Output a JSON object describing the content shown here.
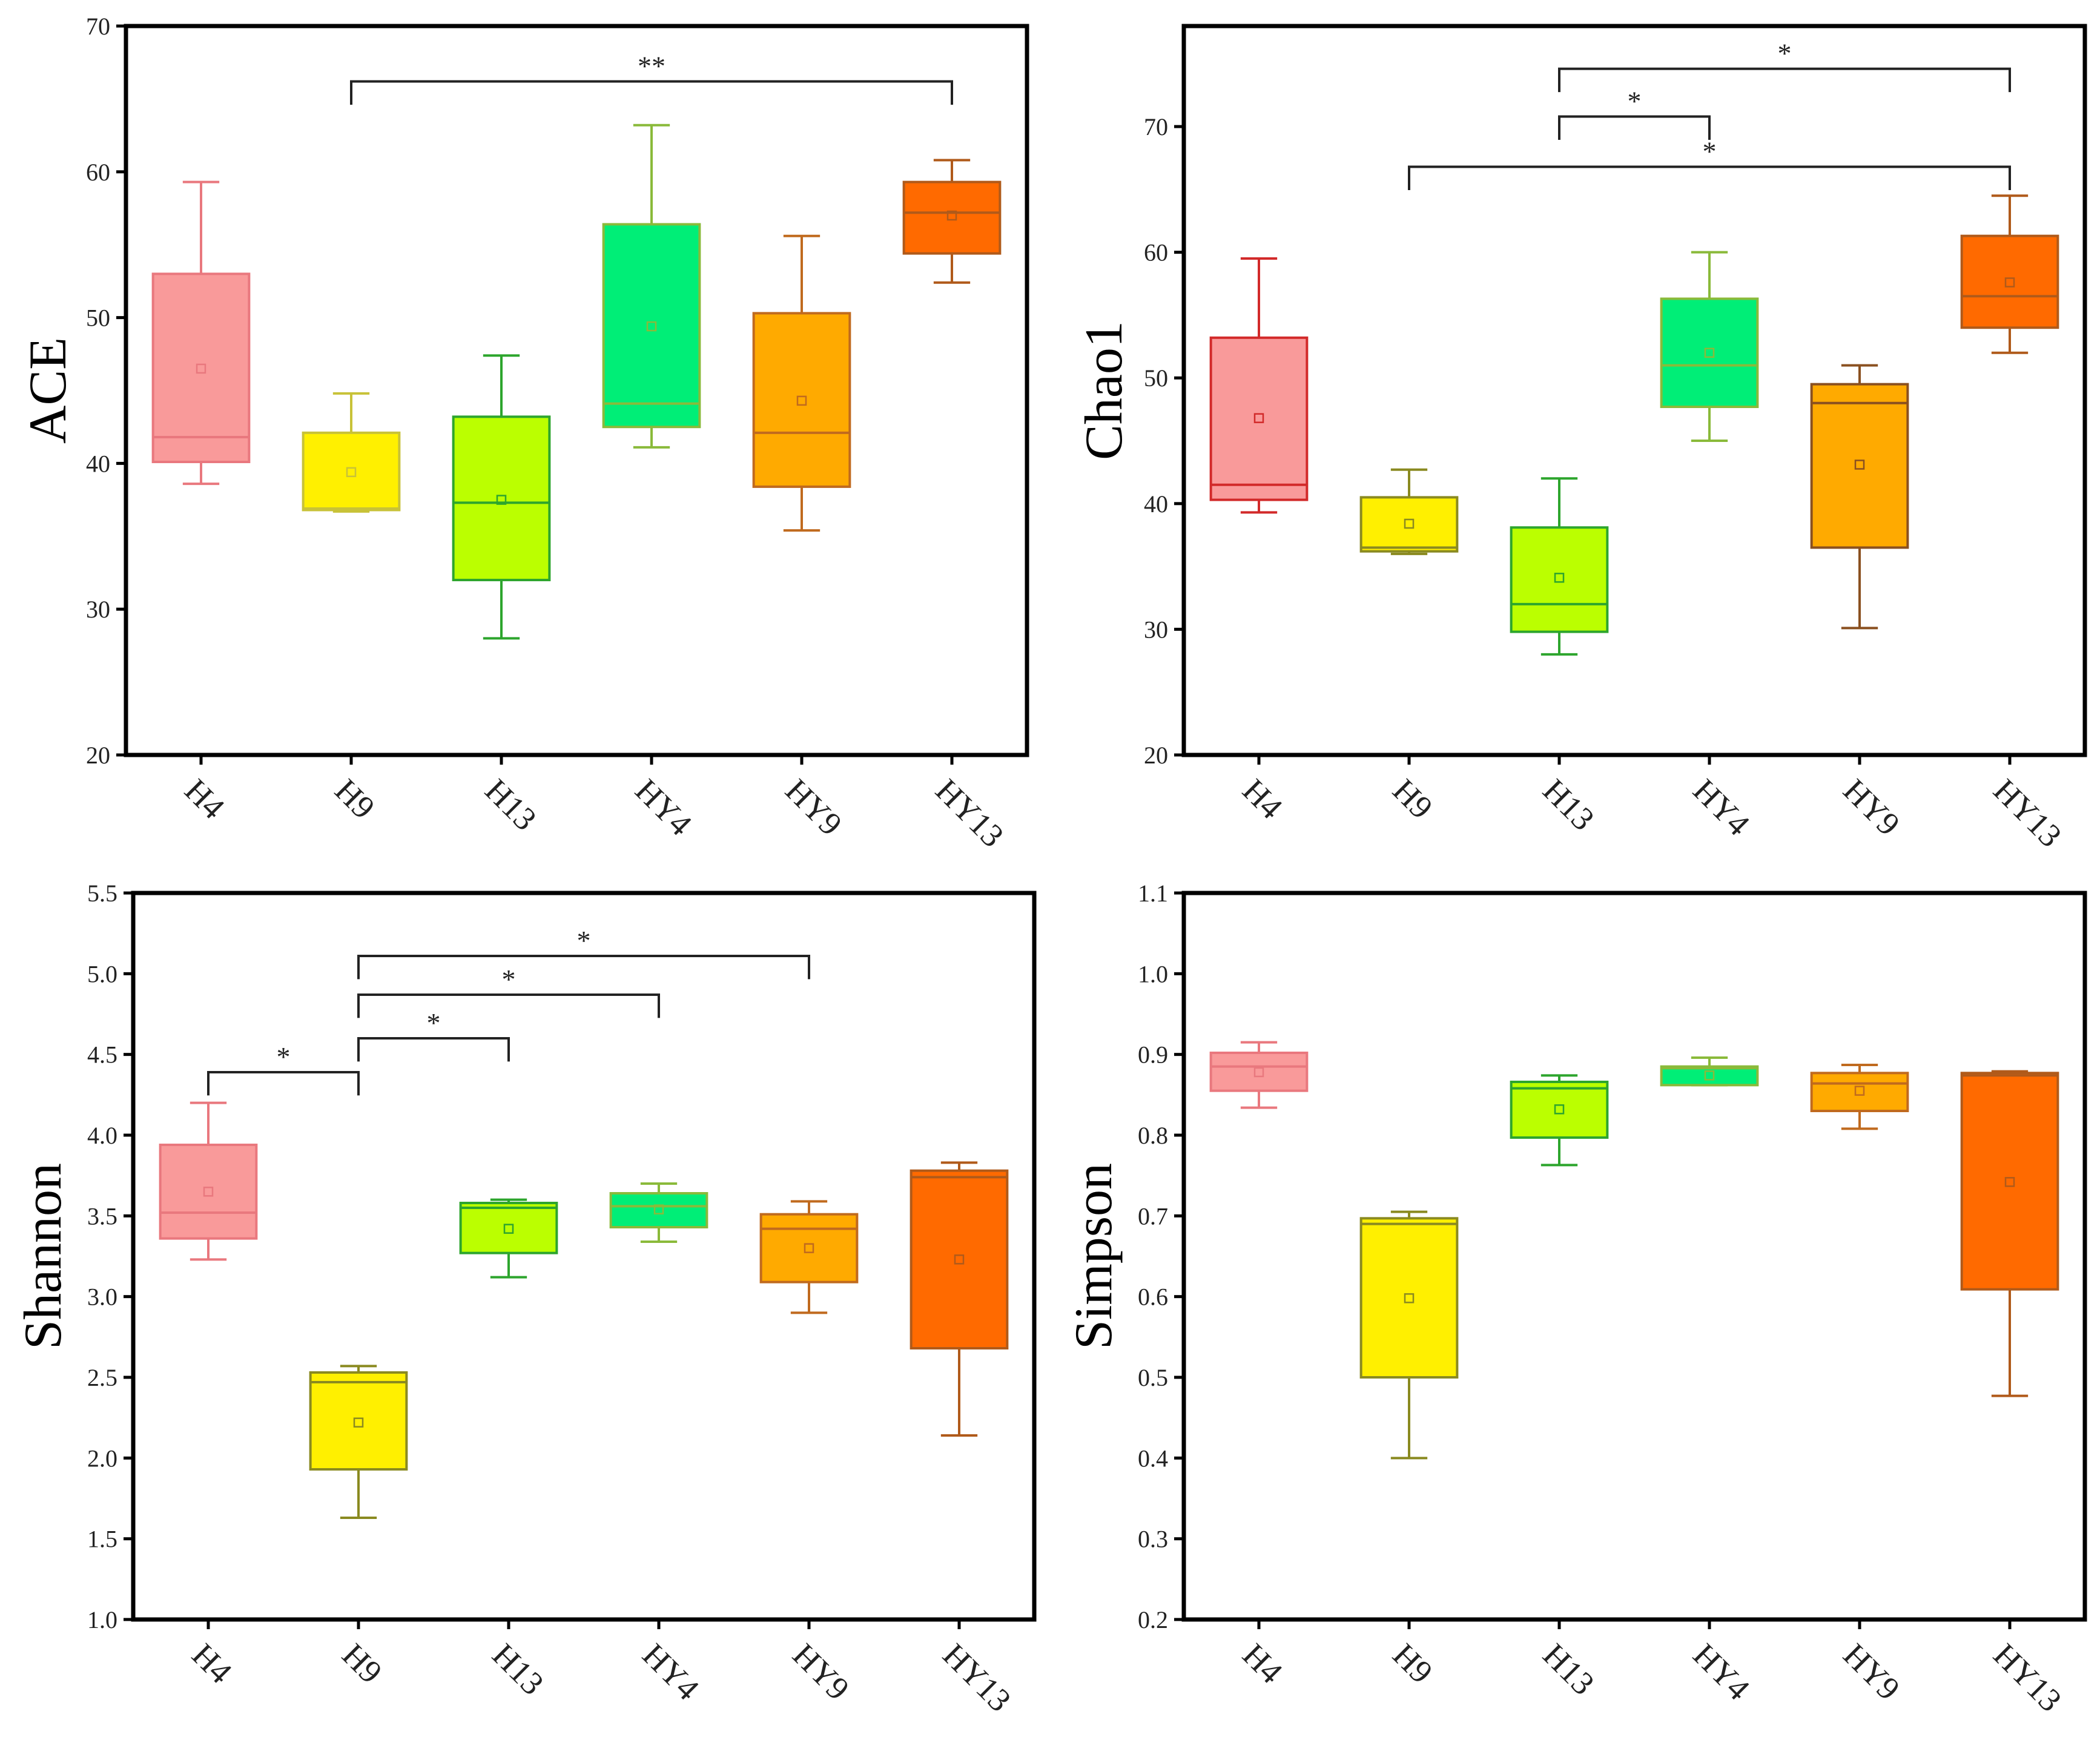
{
  "chart_data": [
    {
      "type": "box",
      "ylabel": "ACE",
      "ylim": [
        20,
        70
      ],
      "yticks": [
        20,
        30,
        40,
        50,
        60,
        70
      ],
      "categories": [
        "H4",
        "H9",
        "H13",
        "HY4",
        "HY9",
        "HY13"
      ],
      "boxes": [
        {
          "name": "H4",
          "color": "#F99A9A",
          "line": "#E9787E",
          "min": 38.6,
          "q1": 40.1,
          "median": 41.8,
          "q3": 53.0,
          "max": 59.3,
          "mean": 46.5
        },
        {
          "name": "H9",
          "color": "#FFF000",
          "line": "#C8C238",
          "min": 36.7,
          "q1": 36.8,
          "median": 36.9,
          "q3": 42.1,
          "max": 44.8,
          "mean": 39.4
        },
        {
          "name": "H13",
          "color": "#BBFF00",
          "line": "#2DA52D",
          "min": 28.0,
          "q1": 32.0,
          "median": 37.3,
          "q3": 43.2,
          "max": 47.4,
          "mean": 37.5
        },
        {
          "name": "HY4",
          "color": "#00EE77",
          "line": "#8ABA3A",
          "min": 41.1,
          "q1": 42.5,
          "median": 44.1,
          "q3": 56.4,
          "max": 63.2,
          "mean": 49.4
        },
        {
          "name": "HY9",
          "color": "#FFAA00",
          "line": "#C06A1E",
          "min": 35.4,
          "q1": 38.4,
          "median": 42.1,
          "q3": 50.3,
          "max": 55.6,
          "mean": 44.3
        },
        {
          "name": "HY13",
          "color": "#FF6A00",
          "line": "#B05A1A",
          "min": 52.4,
          "q1": 54.4,
          "median": 57.2,
          "q3": 59.3,
          "max": 60.8,
          "mean": 57.0
        }
      ],
      "significance": [
        {
          "from": "H9",
          "to": "HY13",
          "y": 66.2,
          "label": "**"
        }
      ]
    },
    {
      "type": "box",
      "ylabel": "Chao1",
      "ylim": [
        20,
        78
      ],
      "yticks": [
        20,
        30,
        40,
        50,
        60,
        70
      ],
      "categories": [
        "H4",
        "H9",
        "H13",
        "HY4",
        "HY9",
        "HY13"
      ],
      "boxes": [
        {
          "name": "H4",
          "color": "#F99A9A",
          "line": "#D22A2A",
          "min": 39.3,
          "q1": 40.3,
          "median": 41.5,
          "q3": 53.2,
          "max": 59.5,
          "mean": 46.8
        },
        {
          "name": "H9",
          "color": "#FFF000",
          "line": "#8A8A20",
          "min": 36.0,
          "q1": 36.2,
          "median": 36.5,
          "q3": 40.5,
          "max": 42.7,
          "mean": 38.4
        },
        {
          "name": "H13",
          "color": "#BBFF00",
          "line": "#2DA52D",
          "min": 28.0,
          "q1": 29.8,
          "median": 32.0,
          "q3": 38.1,
          "max": 42.0,
          "mean": 34.1
        },
        {
          "name": "HY4",
          "color": "#00EE77",
          "line": "#8ABA3A",
          "min": 45.0,
          "q1": 47.7,
          "median": 51.0,
          "q3": 56.3,
          "max": 60.0,
          "mean": 52.0
        },
        {
          "name": "HY9",
          "color": "#FFAA00",
          "line": "#8A5020",
          "min": 30.1,
          "q1": 36.5,
          "median": 48.0,
          "q3": 49.5,
          "max": 51.0,
          "mean": 43.1
        },
        {
          "name": "HY13",
          "color": "#FF6A00",
          "line": "#B05A1A",
          "min": 52.0,
          "q1": 54.0,
          "median": 56.5,
          "q3": 61.3,
          "max": 64.5,
          "mean": 57.6
        }
      ],
      "significance": [
        {
          "from": "H13",
          "to": "HY13",
          "y": 74.6,
          "label": "*"
        },
        {
          "from": "H13",
          "to": "HY4",
          "y": 70.8,
          "label": "*"
        },
        {
          "from": "H9",
          "to": "HY13",
          "y": 66.8,
          "label": "*"
        }
      ]
    },
    {
      "type": "box",
      "ylabel": "Shannon",
      "ylim": [
        1.0,
        5.5
      ],
      "yticks": [
        1.0,
        1.5,
        2.0,
        2.5,
        3.0,
        3.5,
        4.0,
        4.5,
        5.0,
        5.5
      ],
      "tick_decimals": 1,
      "categories": [
        "H4",
        "H9",
        "H13",
        "HY4",
        "HY9",
        "HY13"
      ],
      "boxes": [
        {
          "name": "H4",
          "color": "#F99A9A",
          "line": "#E9787E",
          "min": 3.23,
          "q1": 3.36,
          "median": 3.52,
          "q3": 3.94,
          "max": 4.2,
          "mean": 3.65
        },
        {
          "name": "H9",
          "color": "#FFF000",
          "line": "#8A8A20",
          "min": 1.63,
          "q1": 1.93,
          "median": 2.47,
          "q3": 2.53,
          "max": 2.57,
          "mean": 2.22
        },
        {
          "name": "H13",
          "color": "#BBFF00",
          "line": "#2DA52D",
          "min": 3.12,
          "q1": 3.27,
          "median": 3.55,
          "q3": 3.58,
          "max": 3.6,
          "mean": 3.42
        },
        {
          "name": "HY4",
          "color": "#00EE77",
          "line": "#8ABA3A",
          "min": 3.34,
          "q1": 3.43,
          "median": 3.56,
          "q3": 3.64,
          "max": 3.7,
          "mean": 3.54
        },
        {
          "name": "HY9",
          "color": "#FFAA00",
          "line": "#C06A1E",
          "min": 2.9,
          "q1": 3.09,
          "median": 3.42,
          "q3": 3.51,
          "max": 3.59,
          "mean": 3.3
        },
        {
          "name": "HY13",
          "color": "#FF6A00",
          "line": "#B05A1A",
          "min": 2.14,
          "q1": 2.68,
          "median": 3.74,
          "q3": 3.78,
          "max": 3.83,
          "mean": 3.23
        }
      ],
      "significance": [
        {
          "from": "H9",
          "to": "HY9",
          "y": 5.11,
          "label": "*"
        },
        {
          "from": "H9",
          "to": "HY4",
          "y": 4.87,
          "label": "*"
        },
        {
          "from": "H9",
          "to": "H13",
          "y": 4.6,
          "label": "*"
        },
        {
          "from": "H4",
          "to": "H9",
          "y": 4.39,
          "label": "*"
        }
      ]
    },
    {
      "type": "box",
      "ylabel": "Simpson",
      "ylim": [
        0.2,
        1.1
      ],
      "yticks": [
        0.2,
        0.3,
        0.4,
        0.5,
        0.6,
        0.7,
        0.8,
        0.9,
        1.0,
        1.1
      ],
      "tick_decimals": 1,
      "categories": [
        "H4",
        "H9",
        "H13",
        "HY4",
        "HY9",
        "HY13"
      ],
      "boxes": [
        {
          "name": "H4",
          "color": "#F99A9A",
          "line": "#E9787E",
          "min": 0.834,
          "q1": 0.855,
          "median": 0.885,
          "q3": 0.902,
          "max": 0.915,
          "mean": 0.878
        },
        {
          "name": "H9",
          "color": "#FFF000",
          "line": "#8A8A20",
          "min": 0.4,
          "q1": 0.5,
          "median": 0.69,
          "q3": 0.697,
          "max": 0.705,
          "mean": 0.598
        },
        {
          "name": "H13",
          "color": "#BBFF00",
          "line": "#2DA52D",
          "min": 0.763,
          "q1": 0.797,
          "median": 0.858,
          "q3": 0.866,
          "max": 0.874,
          "mean": 0.832
        },
        {
          "name": "HY4",
          "color": "#00EE77",
          "line": "#8ABA3A",
          "min": 0.862,
          "q1": 0.862,
          "median": 0.883,
          "q3": 0.885,
          "max": 0.896,
          "mean": 0.874
        },
        {
          "name": "HY9",
          "color": "#FFAA00",
          "line": "#C06A1E",
          "min": 0.808,
          "q1": 0.83,
          "median": 0.864,
          "q3": 0.877,
          "max": 0.887,
          "mean": 0.855
        },
        {
          "name": "HY13",
          "color": "#FF6A00",
          "line": "#B05A1A",
          "min": 0.477,
          "q1": 0.609,
          "median": 0.874,
          "q3": 0.877,
          "max": 0.879,
          "mean": 0.742
        }
      ],
      "significance": []
    }
  ]
}
